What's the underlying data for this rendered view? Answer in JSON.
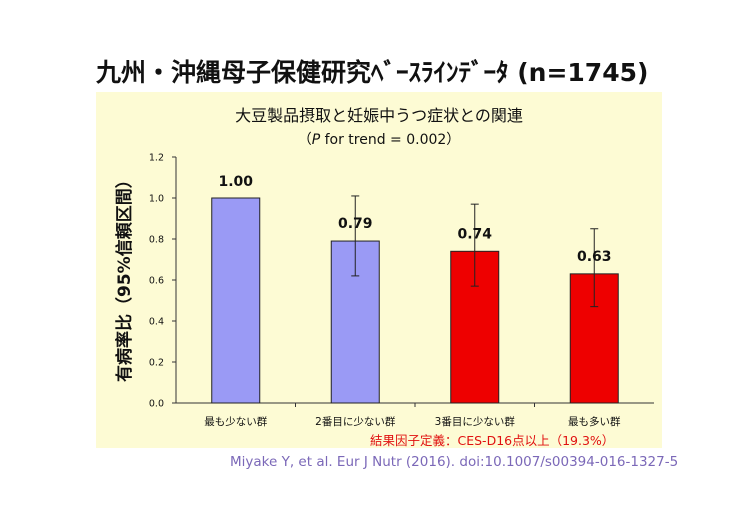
{
  "slide": {
    "title_main": "九州・沖縄母子保健研究ﾍﾞｰｽﾗｲﾝﾃﾞｰﾀ",
    "title_n": "(n=1745)",
    "footnote": "結果因子定義：CES-D16点以上（19.3%）",
    "citation": "Miyake Y, et al. Eur J Nutr (2016). doi:10.1007/s00394-016-1327-5"
  },
  "chart_data": {
    "type": "bar",
    "title": "大豆製品摂取と妊娠中うつ症状との関連",
    "subtitle_italic": "P",
    "subtitle_rest": " for trend = 0.002）",
    "subtitle_open": "（",
    "ylabel": "有病率比（95%信頼区間）",
    "xlabel": "",
    "ylim": [
      0,
      1.2
    ],
    "yticks": [
      "0.0",
      "0.2",
      "0.4",
      "0.6",
      "0.8",
      "1.0",
      "1.2"
    ],
    "categories": [
      "最も少ない群",
      "2番目に少ない群",
      "3番目に少ない群",
      "最も多い群"
    ],
    "values": [
      1.0,
      0.79,
      0.74,
      0.63
    ],
    "value_labels": [
      "1.00",
      "0.79",
      "0.74",
      "0.63"
    ],
    "ci_lower": [
      null,
      0.62,
      0.57,
      0.47
    ],
    "ci_upper": [
      null,
      1.01,
      0.97,
      0.85
    ],
    "bar_colors": [
      "#9a9af5",
      "#9a9af5",
      "#ee0000",
      "#ee0000"
    ],
    "grid": false,
    "legend": "none"
  }
}
